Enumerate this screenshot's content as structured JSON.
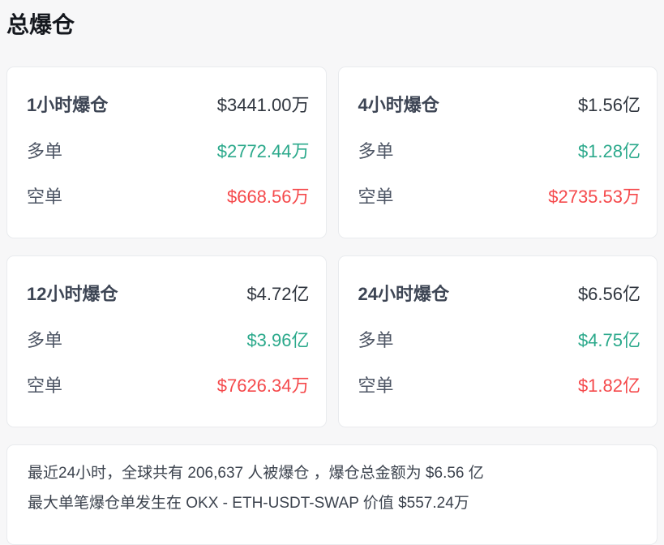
{
  "page_title": "总爆仓",
  "colors": {
    "long_green": "#2ba98b",
    "short_red": "#f54a4c",
    "background": "#f7f7f8",
    "card_background": "#ffffff",
    "card_border": "#e9ebee"
  },
  "cards": [
    {
      "title": "1小时爆仓",
      "total": "$3441.00万",
      "long_label": "多单",
      "long_value": "$2772.44万",
      "short_label": "空单",
      "short_value": "$668.56万"
    },
    {
      "title": "4小时爆仓",
      "total": "$1.56亿",
      "long_label": "多单",
      "long_value": "$1.28亿",
      "short_label": "空单",
      "short_value": "$2735.53万"
    },
    {
      "title": "12小时爆仓",
      "total": "$4.72亿",
      "long_label": "多单",
      "long_value": "$3.96亿",
      "short_label": "空单",
      "short_value": "$7626.34万"
    },
    {
      "title": "24小时爆仓",
      "total": "$6.56亿",
      "long_label": "多单",
      "long_value": "$4.75亿",
      "short_label": "空单",
      "short_value": "$1.82亿"
    }
  ],
  "summary": {
    "line1": "最近24小时，全球共有 206,637 人被爆仓 ，爆仓总金额为 $6.56 亿",
    "line2": "最大单笔爆仓单发生在 OKX - ETH-USDT-SWAP 价值 $557.24万"
  }
}
